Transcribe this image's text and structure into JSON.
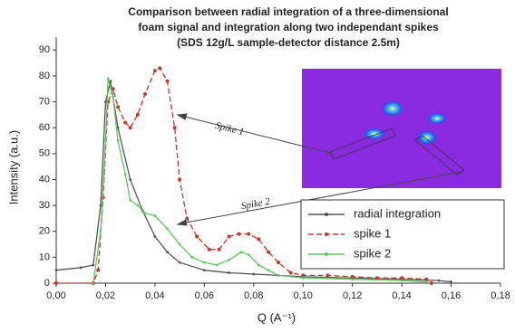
{
  "chart_data": {
    "type": "line",
    "title": [
      "Comparison between radial integration of a three-dimensional",
      "foam signal and integration along two independant spikes",
      "(SDS 12g/L sample-detector distance 2.5m)"
    ],
    "xlabel": "Q (A⁻¹)",
    "ylabel": "Intensity (a.u.)",
    "xlim": [
      0,
      0.18
    ],
    "ylim": [
      0,
      95
    ],
    "xticks": [
      {
        "value": 0,
        "label": "0,00"
      },
      {
        "value": 0.02,
        "label": "0,02"
      },
      {
        "value": 0.04,
        "label": "0,04"
      },
      {
        "value": 0.06,
        "label": "0,06"
      },
      {
        "value": 0.08,
        "label": "0,08"
      },
      {
        "value": 0.1,
        "label": "0,10"
      },
      {
        "value": 0.12,
        "label": "0,12"
      },
      {
        "value": 0.14,
        "label": "0,14"
      },
      {
        "value": 0.16,
        "label": "0,16"
      },
      {
        "value": 0.18,
        "label": "0,18"
      }
    ],
    "yticks": [
      0,
      10,
      20,
      30,
      40,
      50,
      60,
      70,
      80,
      90
    ],
    "annotations": [
      "Spike 1",
      "Spike 2"
    ],
    "series": [
      {
        "name": "radial integration",
        "color": "#555555",
        "x": [
          0,
          0.01,
          0.015,
          0.018,
          0.02,
          0.022,
          0.025,
          0.03,
          0.035,
          0.04,
          0.045,
          0.05,
          0.06,
          0.07,
          0.08,
          0.09,
          0.1,
          0.12,
          0.14,
          0.155,
          0.16
        ],
        "values": [
          5,
          6,
          7,
          30,
          70,
          78,
          60,
          40,
          28,
          18,
          12,
          8,
          5,
          4,
          3.5,
          3,
          2.5,
          2,
          1.5,
          1,
          0.5
        ]
      },
      {
        "name": "spike 1",
        "color": "#c0392b",
        "x": [
          0,
          0.015,
          0.017,
          0.019,
          0.021,
          0.023,
          0.025,
          0.028,
          0.03,
          0.033,
          0.036,
          0.04,
          0.042,
          0.045,
          0.048,
          0.05,
          0.053,
          0.057,
          0.062,
          0.066,
          0.07,
          0.074,
          0.078,
          0.082,
          0.086,
          0.09,
          0.095,
          0.1,
          0.11,
          0.12,
          0.13,
          0.14,
          0.15,
          0.152
        ],
        "values": [
          0,
          0,
          5,
          33,
          70,
          75,
          68,
          62,
          60,
          65,
          73,
          82,
          83,
          78,
          60,
          40,
          25,
          18,
          13,
          13,
          18,
          19,
          19,
          17,
          12,
          8,
          4,
          3,
          3,
          2.5,
          2,
          2,
          1.5,
          0
        ]
      },
      {
        "name": "spike 2",
        "color": "#5cc85c",
        "x": [
          0.015,
          0.018,
          0.02,
          0.021,
          0.023,
          0.025,
          0.028,
          0.03,
          0.033,
          0.036,
          0.04,
          0.045,
          0.05,
          0.055,
          0.06,
          0.065,
          0.07,
          0.075,
          0.078,
          0.082,
          0.086,
          0.09,
          0.1,
          0.12,
          0.14,
          0.15
        ],
        "values": [
          0,
          20,
          55,
          79,
          72,
          55,
          42,
          32,
          30,
          27,
          26,
          21,
          15,
          10,
          8,
          7,
          9,
          12,
          11,
          7,
          5,
          3,
          2,
          1.5,
          1,
          0.5
        ]
      }
    ]
  }
}
